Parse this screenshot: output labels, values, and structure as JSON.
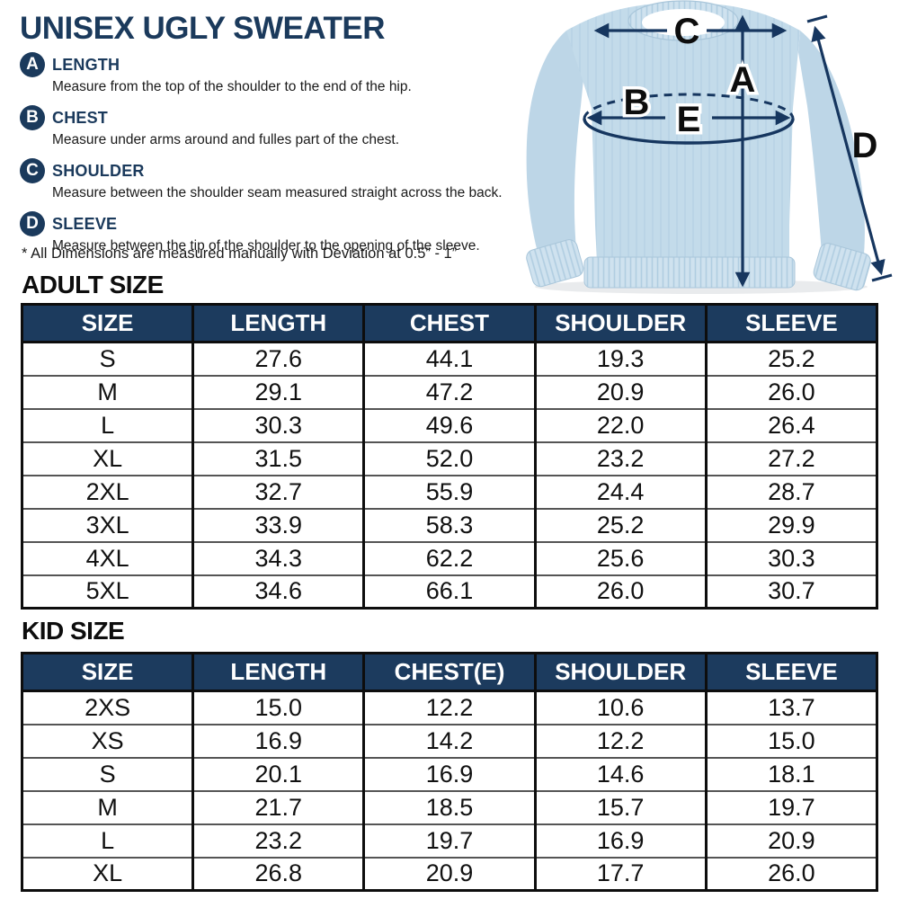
{
  "title": "UNISEX UGLY SWEATER",
  "legend": {
    "items": [
      {
        "letter": "A",
        "label": "LENGTH",
        "desc": "Measure from the top of the shoulder to the end of the hip."
      },
      {
        "letter": "B",
        "label": "CHEST",
        "desc": "Measure under arms around and fulles part of the chest."
      },
      {
        "letter": "C",
        "label": "SHOULDER",
        "desc": "Measure between the shoulder seam measured straight across the back."
      },
      {
        "letter": "D",
        "label": "SLEEVE",
        "desc": "Measure between the tip of the shoulder to the opening of the sleeve."
      }
    ],
    "note": "* All Dimensions are measured manually with Deviation at 0.5” - 1”"
  },
  "diagram": {
    "label_a": "A",
    "label_b": "B",
    "label_c": "C",
    "label_d": "D",
    "label_e": "E"
  },
  "adult": {
    "heading": "ADULT SIZE",
    "columns": [
      "SIZE",
      "LENGTH",
      "CHEST",
      "SHOULDER",
      "SLEEVE"
    ],
    "rows": [
      [
        "S",
        "27.6",
        "44.1",
        "19.3",
        "25.2"
      ],
      [
        "M",
        "29.1",
        "47.2",
        "20.9",
        "26.0"
      ],
      [
        "L",
        "30.3",
        "49.6",
        "22.0",
        "26.4"
      ],
      [
        "XL",
        "31.5",
        "52.0",
        "23.2",
        "27.2"
      ],
      [
        "2XL",
        "32.7",
        "55.9",
        "24.4",
        "28.7"
      ],
      [
        "3XL",
        "33.9",
        "58.3",
        "25.2",
        "29.9"
      ],
      [
        "4XL",
        "34.3",
        "62.2",
        "25.6",
        "30.3"
      ],
      [
        "5XL",
        "34.6",
        "66.1",
        "26.0",
        "30.7"
      ]
    ]
  },
  "kid": {
    "heading": "KID SIZE",
    "columns": [
      "SIZE",
      "LENGTH",
      "CHEST(E)",
      "SHOULDER",
      "SLEEVE"
    ],
    "rows": [
      [
        "2XS",
        "15.0",
        "12.2",
        "10.6",
        "13.7"
      ],
      [
        "XS",
        "16.9",
        "14.2",
        "12.2",
        "15.0"
      ],
      [
        "S",
        "20.1",
        "16.9",
        "14.6",
        "18.1"
      ],
      [
        "M",
        "21.7",
        "18.5",
        "15.7",
        "19.7"
      ],
      [
        "L",
        "23.2",
        "19.7",
        "16.9",
        "20.9"
      ],
      [
        "XL",
        "26.8",
        "20.9",
        "17.7",
        "26.0"
      ]
    ]
  },
  "colors": {
    "navy": "#1c3b5e",
    "arrow_navy": "#16365f",
    "sweater_body": "#c3dbea",
    "sweater_rib": "#cfe2ef",
    "text_black": "#111111"
  }
}
